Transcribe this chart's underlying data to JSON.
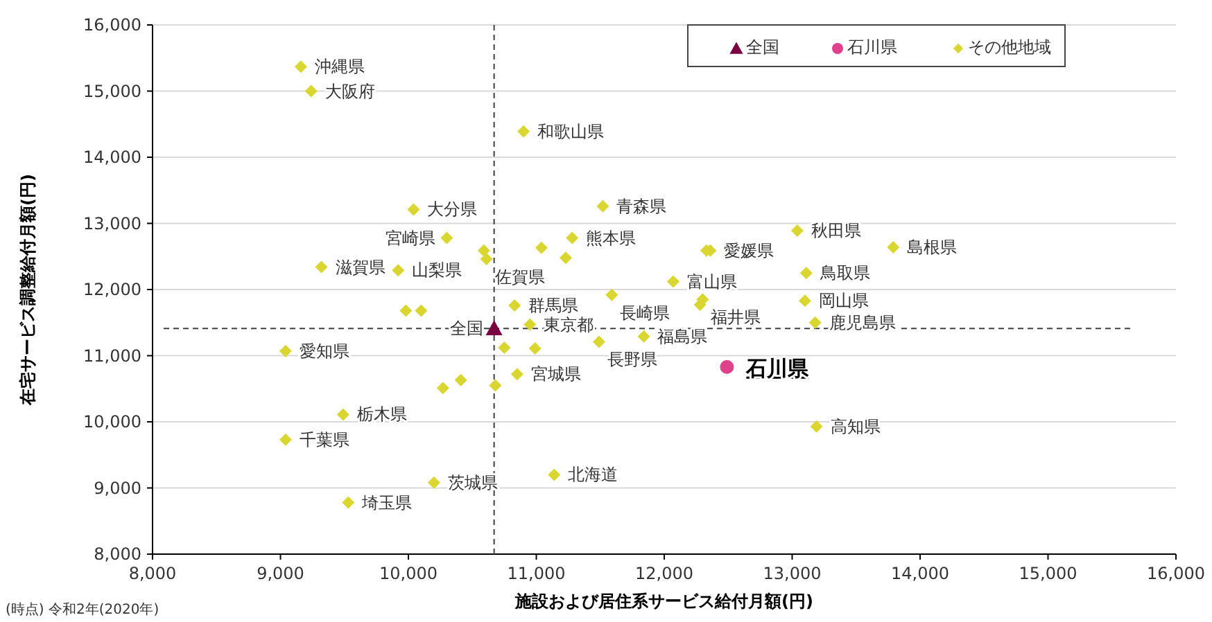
{
  "chart_data": {
    "type": "scatter",
    "xlabel": "施設および居住系サービス給付月額(円)",
    "ylabel": "在宅サービス調整給付月額(円)",
    "xlim": [
      8000,
      16000
    ],
    "ylim": [
      8000,
      16000
    ],
    "xticks": [
      {
        "value": 8000,
        "label": "8,000"
      },
      {
        "value": 9000,
        "label": "9,000"
      },
      {
        "value": 10000,
        "label": "10,000"
      },
      {
        "value": 11000,
        "label": "11,000"
      },
      {
        "value": 12000,
        "label": "12,000"
      },
      {
        "value": 13000,
        "label": "13,000"
      },
      {
        "value": 14000,
        "label": "14,000"
      },
      {
        "value": 15000,
        "label": "15,000"
      },
      {
        "value": 16000,
        "label": "16,000"
      }
    ],
    "yticks": [
      {
        "value": 8000,
        "label": "8,000"
      },
      {
        "value": 9000,
        "label": "9,000"
      },
      {
        "value": 10000,
        "label": "10,000"
      },
      {
        "value": 11000,
        "label": "11,000"
      },
      {
        "value": 12000,
        "label": "12,000"
      },
      {
        "value": 13000,
        "label": "13,000"
      },
      {
        "value": 14000,
        "label": "14,000"
      },
      {
        "value": 15000,
        "label": "15,000"
      },
      {
        "value": 16000,
        "label": "16,000"
      }
    ],
    "grid": "y",
    "legend": "top right",
    "series": [
      {
        "name": "全国",
        "color": "#7b0041",
        "marker": "triangle",
        "x": [
          10670
        ],
        "values": [
          11410
        ]
      },
      {
        "name": "石川県",
        "color": "#e0418b",
        "marker": "circle",
        "x": [
          12490
        ],
        "values": [
          10830
        ]
      },
      {
        "name": "その他地域",
        "color": "#d9d632",
        "marker": "diamond",
        "x": [
          9160,
          9240,
          10900,
          10040,
          11520,
          10300,
          10590,
          10610,
          11040,
          11280,
          11230,
          9320,
          9920,
          9980,
          10100,
          10830,
          10950,
          9040,
          10750,
          10990,
          11490,
          10850,
          10410,
          10270,
          10680,
          9490,
          9040,
          10200,
          11140,
          9530,
          12330,
          12360,
          13040,
          13790,
          13110,
          12070,
          11590,
          12300,
          12280,
          13100,
          13180,
          11840,
          13190
        ],
        "values": [
          15370,
          15000,
          14390,
          13210,
          13260,
          12780,
          12590,
          12460,
          12630,
          12780,
          12480,
          12340,
          12290,
          11680,
          11680,
          11760,
          11470,
          11070,
          11120,
          11110,
          11210,
          10720,
          10630,
          10510,
          10550,
          10110,
          9730,
          9080,
          9200,
          8780,
          12590,
          12590,
          12890,
          12640,
          12250,
          12120,
          11920,
          11850,
          11770,
          11830,
          11500,
          11290,
          9930
        ]
      }
    ],
    "ref_lines": [
      {
        "axis": "x",
        "value": 10670,
        "color": "#404040",
        "line_style": "dashed"
      },
      {
        "axis": "y",
        "value": 11410,
        "color": "#404040",
        "line_style": "dashed"
      }
    ],
    "annotations": [
      {
        "text": "沖縄県",
        "x": 9160,
        "y": 15370
      },
      {
        "text": "大阪府",
        "x": 9240,
        "y": 15000
      },
      {
        "text": "和歌山県",
        "x": 10900,
        "y": 14390
      },
      {
        "text": "大分県",
        "x": 10040,
        "y": 13210
      },
      {
        "text": "青森県",
        "x": 11520,
        "y": 13260
      },
      {
        "text": "宮崎県",
        "x": 10300,
        "y": 12780
      },
      {
        "text": "熊本県",
        "x": 11280,
        "y": 12780
      },
      {
        "text": "佐賀県",
        "x": 10610,
        "y": 12460
      },
      {
        "text": "滋賀県",
        "x": 9320,
        "y": 12340
      },
      {
        "text": "山梨県",
        "x": 9920,
        "y": 12290
      },
      {
        "text": "群馬県",
        "x": 10830,
        "y": 11760
      },
      {
        "text": "東京都",
        "x": 10950,
        "y": 11470
      },
      {
        "text": "全国",
        "x": 10670,
        "y": 11410
      },
      {
        "text": "愛知県",
        "x": 9040,
        "y": 11070
      },
      {
        "text": "長野県",
        "x": 11490,
        "y": 11210
      },
      {
        "text": "宮城県",
        "x": 10850,
        "y": 10720
      },
      {
        "text": "栃木県",
        "x": 9490,
        "y": 10110
      },
      {
        "text": "千葉県",
        "x": 9040,
        "y": 9730
      },
      {
        "text": "茨城県",
        "x": 10200,
        "y": 9080
      },
      {
        "text": "北海道",
        "x": 11140,
        "y": 9200
      },
      {
        "text": "埼玉県",
        "x": 9530,
        "y": 8780
      },
      {
        "text": "愛媛県",
        "x": 12360,
        "y": 12590
      },
      {
        "text": "秋田県",
        "x": 13040,
        "y": 12890
      },
      {
        "text": "島根県",
        "x": 13790,
        "y": 12640
      },
      {
        "text": "鳥取県",
        "x": 13110,
        "y": 12250
      },
      {
        "text": "富山県",
        "x": 12070,
        "y": 12120
      },
      {
        "text": "長崎県",
        "x": 11590,
        "y": 11920
      },
      {
        "text": "福井県",
        "x": 12300,
        "y": 11850
      },
      {
        "text": "岡山県",
        "x": 13100,
        "y": 11830
      },
      {
        "text": "鹿児島県",
        "x": 13180,
        "y": 11500
      },
      {
        "text": "福島県",
        "x": 11840,
        "y": 11290
      },
      {
        "text": "石川県",
        "x": 12490,
        "y": 10830
      },
      {
        "text": "高知県",
        "x": 13190,
        "y": 9930
      },
      "(時点) 令和2年(2020年)"
    ]
  }
}
